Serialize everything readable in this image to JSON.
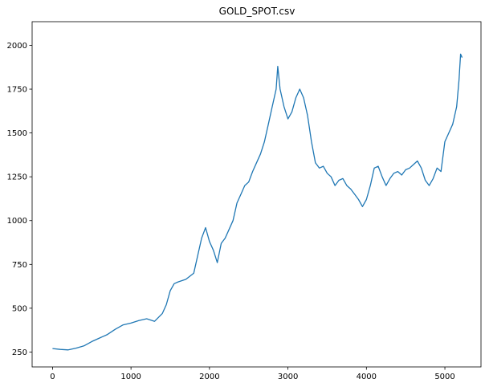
{
  "chart_data": {
    "type": "line",
    "title": "GOLD_SPOT.csv",
    "xlabel": "",
    "ylabel": "",
    "xlim": [
      -260,
      5460
    ],
    "ylim": [
      165,
      2135
    ],
    "x_ticks": [
      0,
      1000,
      2000,
      3000,
      4000,
      5000
    ],
    "y_ticks": [
      250,
      500,
      750,
      1000,
      1250,
      1500,
      1750,
      2000
    ],
    "grid": false,
    "legend": "none",
    "colors": {
      "line": "#1f77b4",
      "axis": "#000000",
      "background": "#ffffff"
    },
    "series": [
      {
        "x": [
          0,
          100,
          200,
          300,
          400,
          500,
          600,
          700,
          800,
          900,
          1000,
          1100,
          1200,
          1300,
          1400,
          1450,
          1500,
          1550,
          1600,
          1700,
          1800,
          1850,
          1900,
          1950,
          2000,
          2050,
          2100,
          2150,
          2200,
          2250,
          2300,
          2350,
          2400,
          2450,
          2500,
          2550,
          2600,
          2650,
          2700,
          2750,
          2800,
          2850,
          2870,
          2900,
          2950,
          3000,
          3050,
          3100,
          3150,
          3200,
          3250,
          3300,
          3350,
          3400,
          3450,
          3500,
          3550,
          3600,
          3650,
          3700,
          3750,
          3800,
          3850,
          3900,
          3950,
          4000,
          4050,
          4100,
          4150,
          4200,
          4250,
          4300,
          4350,
          4400,
          4450,
          4500,
          4550,
          4600,
          4650,
          4700,
          4750,
          4800,
          4850,
          4900,
          4950,
          5000,
          5050,
          5100,
          5150,
          5180,
          5200,
          5220
        ],
        "y": [
          270,
          265,
          262,
          272,
          285,
          310,
          330,
          350,
          380,
          405,
          415,
          430,
          440,
          425,
          470,
          520,
          600,
          640,
          650,
          665,
          700,
          800,
          900,
          960,
          880,
          830,
          760,
          870,
          900,
          950,
          1000,
          1100,
          1150,
          1200,
          1220,
          1280,
          1330,
          1380,
          1450,
          1550,
          1650,
          1750,
          1880,
          1750,
          1650,
          1580,
          1620,
          1700,
          1750,
          1700,
          1600,
          1450,
          1330,
          1300,
          1310,
          1270,
          1250,
          1200,
          1230,
          1240,
          1200,
          1180,
          1150,
          1120,
          1080,
          1120,
          1200,
          1300,
          1310,
          1250,
          1200,
          1240,
          1270,
          1280,
          1260,
          1290,
          1300,
          1320,
          1340,
          1300,
          1230,
          1200,
          1240,
          1300,
          1280,
          1450,
          1500,
          1550,
          1650,
          1800,
          1950,
          1930
        ]
      }
    ]
  }
}
